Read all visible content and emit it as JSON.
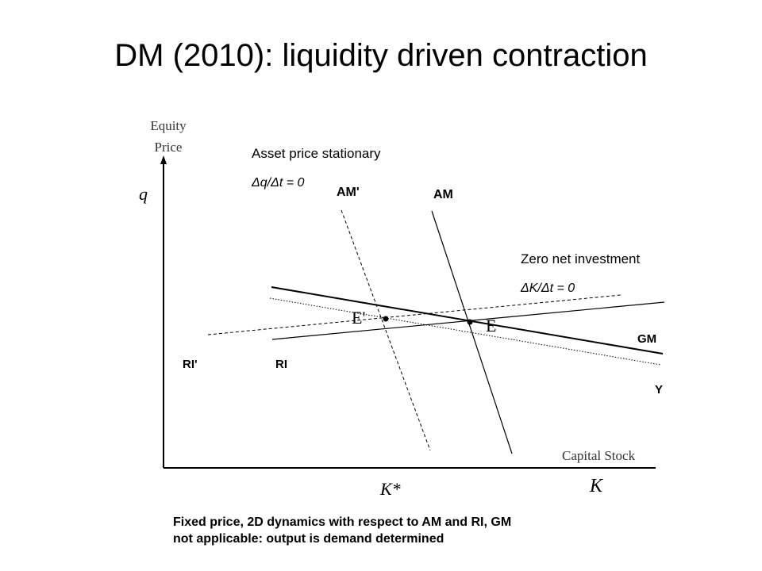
{
  "title": "DM (2010): liquidity driven contraction",
  "axes": {
    "y_title_line1": "Equity",
    "y_title_line2": "Price",
    "y_symbol": "q",
    "x_title": "Capital Stock",
    "x_symbol": "K",
    "x_marker": "K*"
  },
  "annotations": {
    "asset_stationary": "Asset price stationary",
    "asset_stationary_eq": "Δq/Δt = 0",
    "zero_investment": "Zero net investment",
    "zero_investment_eq": "ΔK/Δt = 0"
  },
  "curves": {
    "am": "AM",
    "am_prime": "AM'",
    "gm": "GM",
    "y": "Y",
    "ri": "RI",
    "ri_prime": "RI'"
  },
  "points": {
    "e": "E",
    "e_prime": "E'"
  },
  "footer": {
    "line1": "Fixed price, 2D dynamics  with respect to AM and RI, GM",
    "line2": "not applicable:  output is demand determined"
  }
}
